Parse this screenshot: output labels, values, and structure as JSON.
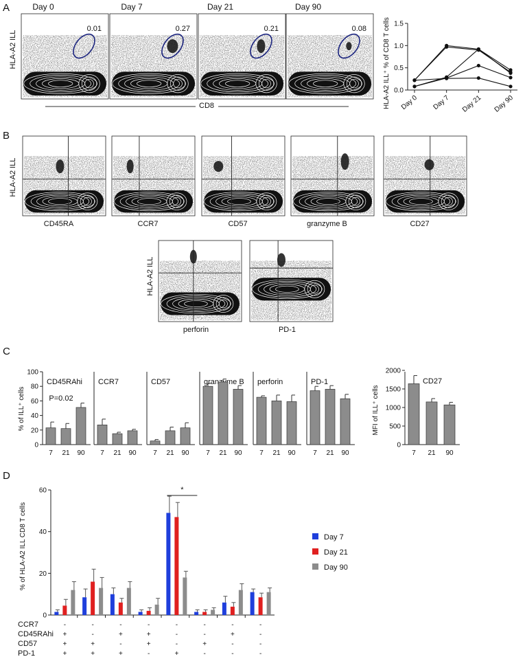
{
  "panels": {
    "A": {
      "letter": "A",
      "flow_plots": [
        {
          "title": "Day 0",
          "gate_value": "0.01"
        },
        {
          "title": "Day 7",
          "gate_value": "0.27"
        },
        {
          "title": "Day 21",
          "gate_value": "0.21"
        },
        {
          "title": "Day 90",
          "gate_value": "0.08"
        }
      ],
      "y_label": "HLA-A2 ILL",
      "x_label": "CD8"
    },
    "B": {
      "letter": "B",
      "y_label": "HLA-A2 ILL",
      "row1": [
        "CD45RA",
        "CCR7",
        "CD57",
        "granzyme B",
        "CD27"
      ],
      "row2": [
        "perforin",
        "PD-1"
      ]
    },
    "C": {
      "letter": "C"
    },
    "D": {
      "letter": "D"
    }
  },
  "chart_data": [
    {
      "type": "line",
      "panel": "A",
      "x": [
        "Day 0",
        "Day 7",
        "Day 21",
        "Day 90"
      ],
      "ylabel": "HLA-A2 ILL⁺ % of CD8 T cells",
      "ylim": [
        0,
        1.5
      ],
      "yticks": [
        "0.0",
        "0.5",
        "1.0",
        "1.5"
      ],
      "series": [
        {
          "values": [
            0.22,
            1.0,
            0.92,
            0.45
          ]
        },
        {
          "values": [
            0.22,
            0.97,
            0.9,
            0.4
          ]
        },
        {
          "values": [
            0.08,
            0.29,
            0.92,
            0.38
          ]
        },
        {
          "values": [
            0.08,
            0.27,
            0.55,
            0.28
          ]
        },
        {
          "values": [
            0.22,
            0.26,
            0.27,
            0.08
          ]
        }
      ]
    },
    {
      "type": "bar",
      "panel": "C",
      "ylabel": "% of ILL⁺ cells",
      "ylim": [
        0,
        100
      ],
      "yticks": [
        "0",
        "20",
        "40",
        "60",
        "80",
        "100"
      ],
      "categories": [
        "7",
        "21",
        "90"
      ],
      "subplots": [
        {
          "title": "CD45RAhi",
          "annotation": "P=0.02",
          "values": [
            23,
            22,
            51
          ],
          "errors": [
            8,
            7,
            6
          ]
        },
        {
          "title": "CCR7",
          "values": [
            27,
            15,
            19
          ],
          "errors": [
            8,
            2,
            2
          ]
        },
        {
          "title": "CD57",
          "values": [
            5,
            19,
            23
          ],
          "errors": [
            2,
            5,
            7
          ]
        },
        {
          "title": "granzyme B",
          "values": [
            80,
            86,
            76
          ],
          "errors": [
            4,
            4,
            5
          ]
        },
        {
          "title": "perforin",
          "values": [
            65,
            60,
            59
          ],
          "errors": [
            2,
            8,
            9
          ]
        },
        {
          "title": "PD-1",
          "values": [
            74,
            76,
            63
          ],
          "errors": [
            6,
            5,
            6
          ]
        }
      ]
    },
    {
      "type": "bar",
      "panel": "C",
      "title": "CD27",
      "ylabel": "MFI of ILL⁺ cells",
      "ylim": [
        0,
        2000
      ],
      "yticks": [
        "0",
        "500",
        "1000",
        "1500",
        "2000"
      ],
      "categories": [
        "7",
        "21",
        "90"
      ],
      "values": [
        1640,
        1150,
        1070
      ],
      "errors": [
        220,
        90,
        70
      ]
    },
    {
      "type": "bar",
      "panel": "D",
      "ylabel": "% of HLA-A2 ILL CD8 T cells",
      "ylim": [
        0,
        60
      ],
      "yticks": [
        "0",
        "20",
        "40",
        "60"
      ],
      "significance": "*",
      "row_labels": [
        "CCR7",
        "CD45RAhi",
        "CD57",
        "PD-1"
      ],
      "column_signs": [
        [
          "-",
          "+",
          "+",
          "+"
        ],
        [
          "-",
          "-",
          "+",
          "+"
        ],
        [
          "-",
          "+",
          "-",
          "+"
        ],
        [
          "-",
          "+",
          "+",
          "-"
        ],
        [
          "-",
          "-",
          "-",
          "+"
        ],
        [
          "-",
          "-",
          "+",
          "-"
        ],
        [
          "-",
          "+",
          "-",
          "-"
        ],
        [
          "-",
          "-",
          "-",
          "-"
        ]
      ],
      "series": [
        {
          "name": "Day 7",
          "color": "#1f3fdc",
          "values": [
            1.5,
            8.5,
            10,
            1.5,
            49,
            1.5,
            6,
            11
          ],
          "errors": [
            1,
            4,
            3,
            1,
            8,
            1,
            3,
            1.5
          ]
        },
        {
          "name": "Day 21",
          "color": "#e02020",
          "values": [
            4.5,
            16,
            6,
            2,
            47,
            1.5,
            4,
            8.5
          ],
          "errors": [
            3,
            6,
            2,
            1.5,
            7,
            1,
            2,
            2
          ]
        },
        {
          "name": "Day 90",
          "color": "#8c8c8c",
          "values": [
            12,
            13,
            13,
            5,
            18,
            2.5,
            12,
            11
          ],
          "errors": [
            4,
            5,
            3,
            3,
            3,
            1,
            3,
            2
          ]
        }
      ]
    }
  ]
}
